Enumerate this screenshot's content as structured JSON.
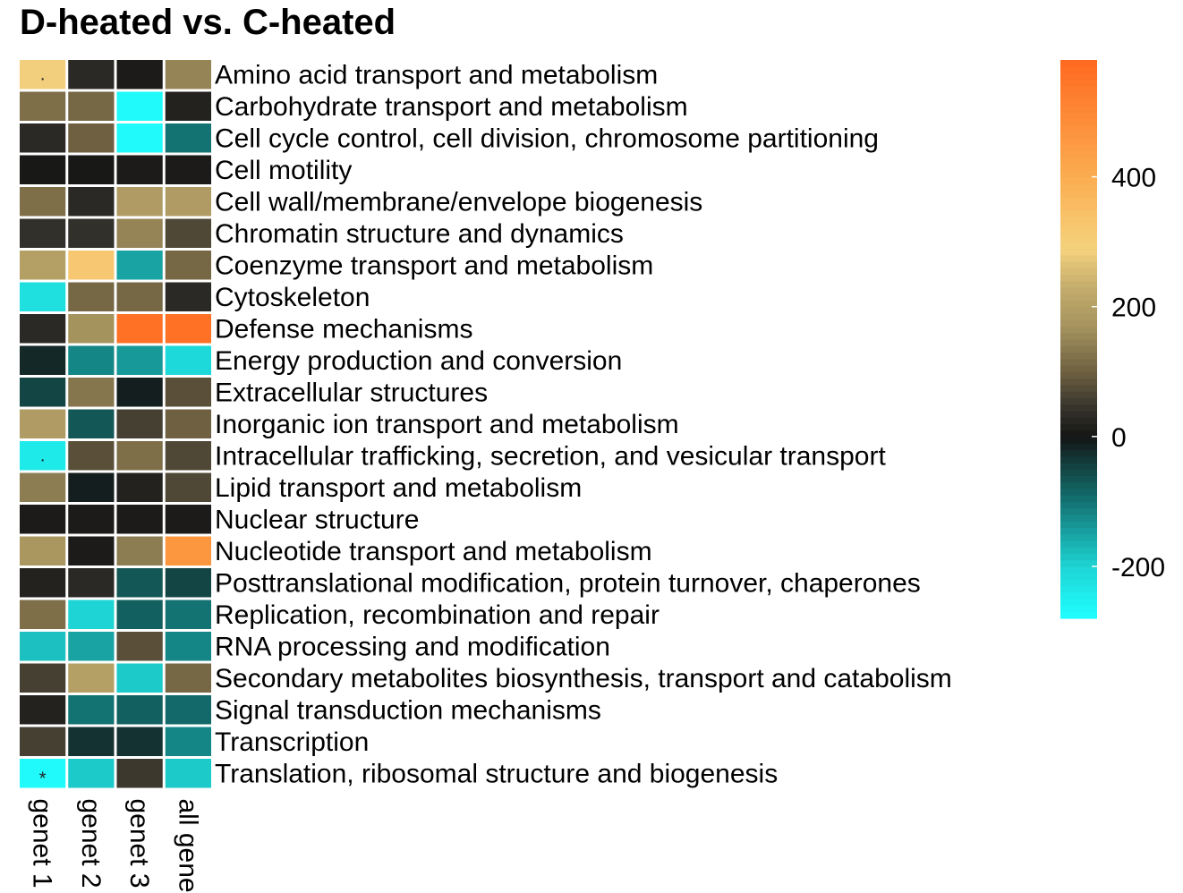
{
  "chart_data": {
    "type": "heatmap",
    "title": "D-heated vs. C-heated",
    "columns": [
      "genet 1",
      "genet 2",
      "genet 3",
      "all genets"
    ],
    "rows": [
      "Amino acid transport and metabolism",
      "Carbohydrate transport and metabolism",
      "Cell cycle control, cell division, chromosome partitioning",
      "Cell motility",
      "Cell wall/membrane/envelope biogenesis",
      "Chromatin structure and dynamics",
      "Coenzyme transport and metabolism",
      "Cytoskeleton",
      "Defense mechanisms",
      "Energy production and conversion",
      "Extracellular structures",
      "Inorganic ion transport and metabolism",
      "Intracellular trafficking, secretion, and vesicular transport",
      "Lipid transport and metabolism",
      "Nuclear structure",
      "Nucleotide transport and metabolism",
      "Posttranslational modification, protein turnover, chaperones",
      "Replication, recombination and repair",
      "RNA processing and modification",
      "Secondary metabolites biosynthesis, transport and catabolism",
      "Signal transduction mechanisms",
      "Transcription",
      "Translation, ribosomal structure and biogenesis"
    ],
    "values": [
      [
        285,
        30,
        10,
        150
      ],
      [
        120,
        110,
        -270,
        20
      ],
      [
        30,
        100,
        -270,
        -100
      ],
      [
        5,
        5,
        10,
        10
      ],
      [
        120,
        30,
        190,
        190
      ],
      [
        40,
        40,
        150,
        70
      ],
      [
        200,
        320,
        -150,
        110
      ],
      [
        -220,
        110,
        110,
        30
      ],
      [
        30,
        170,
        560,
        560
      ],
      [
        -20,
        -120,
        -140,
        -210
      ],
      [
        -50,
        130,
        -10,
        80
      ],
      [
        190,
        -70,
        60,
        100
      ],
      [
        -240,
        80,
        120,
        70
      ],
      [
        140,
        -10,
        20,
        70
      ],
      [
        10,
        10,
        10,
        10
      ],
      [
        180,
        10,
        140,
        460
      ],
      [
        20,
        30,
        -70,
        -50
      ],
      [
        120,
        -200,
        -80,
        -100
      ],
      [
        -180,
        -150,
        80,
        -120
      ],
      [
        60,
        200,
        -190,
        110
      ],
      [
        20,
        -100,
        -80,
        -90
      ],
      [
        60,
        -30,
        -30,
        -120
      ],
      [
        -270,
        -190,
        50,
        -190
      ]
    ],
    "significance": [
      [
        ".",
        "",
        "",
        ""
      ],
      [
        "",
        "",
        "",
        ""
      ],
      [
        "",
        "",
        "",
        ""
      ],
      [
        "",
        "",
        "",
        ""
      ],
      [
        "",
        "",
        "",
        ""
      ],
      [
        "",
        "",
        "",
        ""
      ],
      [
        "",
        "",
        "",
        ""
      ],
      [
        "",
        "",
        "",
        ""
      ],
      [
        "",
        "",
        "",
        ""
      ],
      [
        "",
        "",
        "",
        ""
      ],
      [
        "",
        "",
        "",
        ""
      ],
      [
        "",
        "",
        "",
        ""
      ],
      [
        ".",
        "",
        "",
        ""
      ],
      [
        "",
        "",
        "",
        ""
      ],
      [
        "",
        "",
        "",
        ""
      ],
      [
        "",
        "",
        "",
        ""
      ],
      [
        "",
        "",
        "",
        ""
      ],
      [
        "",
        "",
        "",
        ""
      ],
      [
        "",
        "",
        "",
        ""
      ],
      [
        "",
        "",
        "",
        ""
      ],
      [
        "",
        "",
        "",
        ""
      ],
      [
        "",
        "",
        "",
        ""
      ],
      [
        "*",
        "",
        "",
        ""
      ]
    ],
    "colorbar": {
      "min": -280,
      "max": 580,
      "ticks": [
        -200,
        0,
        200,
        400
      ],
      "tick_labels": [
        "-200",
        "0",
        "200",
        "400"
      ],
      "stops": [
        {
          "value": -280,
          "color": "#20FFFF"
        },
        {
          "value": -200,
          "color": "#1ED4D4"
        },
        {
          "value": -100,
          "color": "#137272"
        },
        {
          "value": -40,
          "color": "#143C3C"
        },
        {
          "value": 0,
          "color": "#141414"
        },
        {
          "value": 40,
          "color": "#32302A"
        },
        {
          "value": 100,
          "color": "#6E6041"
        },
        {
          "value": 170,
          "color": "#A5935E"
        },
        {
          "value": 230,
          "color": "#C3AC6C"
        },
        {
          "value": 290,
          "color": "#F5D27D"
        },
        {
          "value": 400,
          "color": "#FBAD50"
        },
        {
          "value": 580,
          "color": "#FF6A20"
        }
      ]
    },
    "legend_position": "right"
  }
}
